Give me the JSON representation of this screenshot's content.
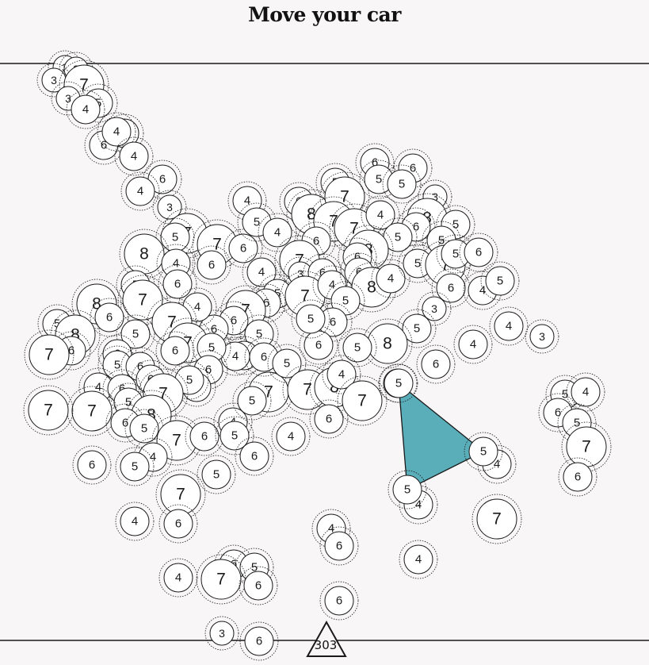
{
  "title": "Move your car",
  "score": "303",
  "colors": {
    "car_fill": "#5aaeb9",
    "background": "#f8f6f7",
    "circle_fill": "#ffffff",
    "stroke": "#1a1a1a"
  },
  "car": {
    "node_labels": [
      "5",
      "5",
      "5"
    ]
  },
  "obstacle_labels": [
    "3",
    "3",
    "3",
    "7",
    "3",
    "5",
    "4",
    "5",
    "6",
    "4",
    "4",
    "6",
    "4",
    "3",
    "7",
    "5",
    "8",
    "7",
    "6",
    "4",
    "6",
    "6",
    "5",
    "7",
    "4",
    "5",
    "4",
    "6",
    "8",
    "5",
    "7",
    "7",
    "6",
    "5",
    "6",
    "5",
    "3",
    "8",
    "5",
    "6",
    "7",
    "4",
    "6",
    "5",
    "5",
    "8",
    "6",
    "7",
    "4",
    "5",
    "3",
    "6",
    "7",
    "4",
    "6",
    "8",
    "4",
    "5",
    "7",
    "5",
    "6",
    "6",
    "4",
    "5",
    "3",
    "5",
    "8",
    "5",
    "5",
    "6",
    "6",
    "5",
    "6",
    "7",
    "6",
    "6",
    "4",
    "5",
    "6",
    "4",
    "7",
    "6",
    "5",
    "7",
    "8",
    "6",
    "4",
    "7",
    "6",
    "6",
    "4",
    "4",
    "3",
    "8",
    "6",
    "5",
    "8",
    "6",
    "7",
    "5",
    "6",
    "7",
    "7",
    "6",
    "5",
    "6",
    "5",
    "5",
    "5",
    "6",
    "6",
    "4",
    "6",
    "7",
    "5",
    "7",
    "8",
    "6",
    "5",
    "7",
    "6",
    "4",
    "5",
    "5",
    "4",
    "6",
    "5",
    "4",
    "5",
    "6",
    "7",
    "4",
    "6",
    "4",
    "6",
    "4",
    "4",
    "7",
    "6",
    "6",
    "5",
    "7",
    "6",
    "4",
    "3",
    "6",
    "7",
    "4",
    "5",
    "4",
    "6",
    "5",
    "7",
    "6",
    "6",
    "6",
    "6",
    "6",
    "3",
    "4",
    "4"
  ]
}
